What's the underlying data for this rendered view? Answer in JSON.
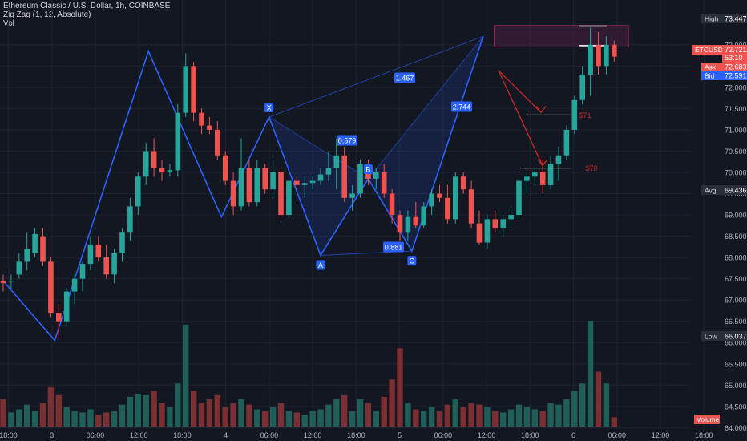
{
  "header": {
    "symbol_line": "Ethereum Classic / U.S. Dollar, 1h, COINBASE",
    "indicator_line": "Zig Zag (1, 12, Absolute)",
    "volume_line": "Vol"
  },
  "price_badges": {
    "high_label": "High",
    "high_value": "73.447",
    "symbol": "ETCUSD",
    "last_value": "72.721",
    "countdown": "53:10",
    "ask_label": "Ask",
    "ask_value": "72.683",
    "bid_label": "Bid",
    "bid_value": "72.591",
    "avg_label": "Avg",
    "avg_value": "69.436",
    "low_label": "Low",
    "low_value": "66.037",
    "volume_label": "Volume"
  },
  "pattern": {
    "points": [
      {
        "label": "X",
        "time": 18,
        "price": 71.3
      },
      {
        "label": "A",
        "time": 24,
        "price": 68.05
      },
      {
        "label": "B",
        "time": 30,
        "price": 69.85
      },
      {
        "label": "C",
        "time": 35.5,
        "price": 68.15
      }
    ],
    "ratios": [
      "1.467",
      "0.579",
      "0.881",
      "2.744"
    ]
  },
  "targets": [
    "$71",
    "$70"
  ],
  "colors": {
    "up": "#26a69a",
    "down": "#ef5350",
    "zigzag": "#2962ff",
    "badge_blue": "#2962ff",
    "target_red": "#c62828",
    "box": "#4a1f3f"
  },
  "chart_data": {
    "type": "candlestick",
    "symbol": "ETCUSD",
    "interval": "1h",
    "exchange": "COINBASE",
    "x_ticks": [
      "18:00",
      "3",
      "06:00",
      "12:00",
      "18:00",
      "4",
      "06:00",
      "12:00",
      "18:00",
      "5",
      "06:00",
      "12:00",
      "18:00",
      "6",
      "06:00",
      "12:00",
      "18:00"
    ],
    "y_ticks": [
      "64.000",
      "64.500",
      "65.000",
      "65.500",
      "66.000",
      "66.500",
      "67.000",
      "67.500",
      "68.000",
      "68.500",
      "69.000",
      "69.500",
      "70.000",
      "70.500",
      "71.000",
      "71.500",
      "72.000",
      "72.500",
      "73.000"
    ],
    "ylim": [
      63.95,
      73.75
    ],
    "zigzag": [
      {
        "time": 0.0,
        "price": 67.45
      },
      {
        "time": 6.5,
        "price": 66.05
      },
      {
        "time": 18.3,
        "price": 72.85
      },
      {
        "time": 27.5,
        "price": 68.95
      },
      {
        "time": 33.5,
        "price": 71.3
      },
      {
        "time": 40.0,
        "price": 68.05
      },
      {
        "time": 46.0,
        "price": 69.85
      },
      {
        "time": 51.5,
        "price": 68.15
      },
      {
        "time": 60.5,
        "price": 73.2
      }
    ],
    "candles": [
      {
        "o": 67.45,
        "h": 67.6,
        "l": 67.2,
        "c": 67.4,
        "v": 0.35
      },
      {
        "o": 67.45,
        "h": 67.6,
        "l": 67.25,
        "c": 67.45,
        "v": 0.18
      },
      {
        "o": 67.6,
        "h": 68.1,
        "l": 67.5,
        "c": 67.9,
        "v": 0.22
      },
      {
        "o": 67.9,
        "h": 68.6,
        "l": 67.7,
        "c": 68.2,
        "v": 0.28
      },
      {
        "o": 68.1,
        "h": 68.7,
        "l": 68.0,
        "c": 68.55,
        "v": 0.2
      },
      {
        "o": 68.5,
        "h": 68.7,
        "l": 67.8,
        "c": 67.9,
        "v": 0.3
      },
      {
        "o": 67.9,
        "h": 68.0,
        "l": 66.6,
        "c": 66.7,
        "v": 0.5
      },
      {
        "o": 66.7,
        "h": 66.9,
        "l": 66.1,
        "c": 66.5,
        "v": 0.4
      },
      {
        "o": 66.5,
        "h": 67.3,
        "l": 66.4,
        "c": 67.2,
        "v": 0.25
      },
      {
        "o": 67.2,
        "h": 67.6,
        "l": 66.9,
        "c": 67.5,
        "v": 0.2
      },
      {
        "o": 67.5,
        "h": 67.9,
        "l": 67.2,
        "c": 67.85,
        "v": 0.18
      },
      {
        "o": 67.85,
        "h": 68.5,
        "l": 67.7,
        "c": 68.3,
        "v": 0.22
      },
      {
        "o": 68.3,
        "h": 68.5,
        "l": 67.9,
        "c": 68.0,
        "v": 0.15
      },
      {
        "o": 68.0,
        "h": 68.3,
        "l": 67.5,
        "c": 67.6,
        "v": 0.18
      },
      {
        "o": 67.6,
        "h": 68.2,
        "l": 67.4,
        "c": 68.1,
        "v": 0.2
      },
      {
        "o": 68.1,
        "h": 68.7,
        "l": 67.9,
        "c": 68.6,
        "v": 0.28
      },
      {
        "o": 68.6,
        "h": 69.4,
        "l": 68.4,
        "c": 69.2,
        "v": 0.38
      },
      {
        "o": 69.2,
        "h": 70.0,
        "l": 69.0,
        "c": 69.9,
        "v": 0.42
      },
      {
        "o": 69.9,
        "h": 70.7,
        "l": 69.7,
        "c": 70.5,
        "v": 0.4
      },
      {
        "o": 70.5,
        "h": 70.8,
        "l": 69.9,
        "c": 70.1,
        "v": 0.45
      },
      {
        "o": 70.1,
        "h": 70.3,
        "l": 69.8,
        "c": 70.0,
        "v": 0.3
      },
      {
        "o": 70.0,
        "h": 70.2,
        "l": 69.9,
        "c": 70.05,
        "v": 0.25
      },
      {
        "o": 70.05,
        "h": 71.6,
        "l": 69.9,
        "c": 71.4,
        "v": 0.55
      },
      {
        "o": 71.4,
        "h": 72.8,
        "l": 71.3,
        "c": 72.5,
        "v": 1.3
      },
      {
        "o": 72.5,
        "h": 72.6,
        "l": 71.2,
        "c": 71.4,
        "v": 0.45
      },
      {
        "o": 71.4,
        "h": 71.5,
        "l": 70.9,
        "c": 71.1,
        "v": 0.3
      },
      {
        "o": 71.1,
        "h": 71.3,
        "l": 70.9,
        "c": 71.0,
        "v": 0.35
      },
      {
        "o": 71.0,
        "h": 71.2,
        "l": 70.3,
        "c": 70.4,
        "v": 0.4
      },
      {
        "o": 70.4,
        "h": 70.5,
        "l": 69.7,
        "c": 69.8,
        "v": 0.25
      },
      {
        "o": 69.8,
        "h": 70.0,
        "l": 69.0,
        "c": 69.2,
        "v": 0.3
      },
      {
        "o": 69.2,
        "h": 70.8,
        "l": 69.1,
        "c": 70.1,
        "v": 0.35
      },
      {
        "o": 70.1,
        "h": 70.3,
        "l": 69.2,
        "c": 69.3,
        "v": 0.28
      },
      {
        "o": 69.3,
        "h": 70.3,
        "l": 69.2,
        "c": 70.1,
        "v": 0.22
      },
      {
        "o": 70.1,
        "h": 70.2,
        "l": 69.5,
        "c": 69.6,
        "v": 0.2
      },
      {
        "o": 69.6,
        "h": 70.3,
        "l": 69.4,
        "c": 70.0,
        "v": 0.25
      },
      {
        "o": 70.0,
        "h": 70.1,
        "l": 68.9,
        "c": 69.0,
        "v": 0.3
      },
      {
        "o": 69.0,
        "h": 69.8,
        "l": 68.9,
        "c": 69.8,
        "v": 0.2
      },
      {
        "o": 69.8,
        "h": 69.9,
        "l": 69.6,
        "c": 69.7,
        "v": 0.18
      },
      {
        "o": 69.7,
        "h": 69.9,
        "l": 69.4,
        "c": 69.75,
        "v": 0.15
      },
      {
        "o": 69.75,
        "h": 69.9,
        "l": 69.6,
        "c": 69.8,
        "v": 0.2
      },
      {
        "o": 69.8,
        "h": 70.1,
        "l": 69.7,
        "c": 69.95,
        "v": 0.22
      },
      {
        "o": 69.95,
        "h": 70.5,
        "l": 69.8,
        "c": 70.1,
        "v": 0.28
      },
      {
        "o": 70.1,
        "h": 70.8,
        "l": 69.6,
        "c": 70.4,
        "v": 0.35
      },
      {
        "o": 70.4,
        "h": 70.6,
        "l": 69.3,
        "c": 69.4,
        "v": 0.4
      },
      {
        "o": 69.4,
        "h": 69.7,
        "l": 69.1,
        "c": 69.5,
        "v": 0.2
      },
      {
        "o": 69.5,
        "h": 70.3,
        "l": 69.4,
        "c": 70.2,
        "v": 0.35
      },
      {
        "o": 70.2,
        "h": 70.3,
        "l": 69.7,
        "c": 69.85,
        "v": 0.3
      },
      {
        "o": 69.85,
        "h": 70.1,
        "l": 69.6,
        "c": 70.0,
        "v": 0.2
      },
      {
        "o": 70.0,
        "h": 70.2,
        "l": 69.4,
        "c": 69.5,
        "v": 0.38
      },
      {
        "o": 69.5,
        "h": 69.6,
        "l": 68.8,
        "c": 69.0,
        "v": 0.6
      },
      {
        "o": 69.0,
        "h": 69.1,
        "l": 68.4,
        "c": 68.6,
        "v": 1.0
      },
      {
        "o": 68.6,
        "h": 69.1,
        "l": 68.4,
        "c": 68.95,
        "v": 0.3
      },
      {
        "o": 68.95,
        "h": 69.3,
        "l": 68.7,
        "c": 68.75,
        "v": 0.22
      },
      {
        "o": 68.75,
        "h": 69.3,
        "l": 68.7,
        "c": 69.2,
        "v": 0.2
      },
      {
        "o": 69.2,
        "h": 69.6,
        "l": 69.0,
        "c": 69.5,
        "v": 0.25
      },
      {
        "o": 69.5,
        "h": 69.7,
        "l": 69.3,
        "c": 69.4,
        "v": 0.2
      },
      {
        "o": 69.4,
        "h": 69.7,
        "l": 68.8,
        "c": 68.9,
        "v": 0.28
      },
      {
        "o": 68.9,
        "h": 70.0,
        "l": 68.8,
        "c": 69.9,
        "v": 0.35
      },
      {
        "o": 69.9,
        "h": 70.0,
        "l": 69.5,
        "c": 69.6,
        "v": 0.25
      },
      {
        "o": 69.6,
        "h": 69.8,
        "l": 68.7,
        "c": 68.8,
        "v": 0.3
      },
      {
        "o": 68.8,
        "h": 69.1,
        "l": 68.3,
        "c": 68.35,
        "v": 0.28
      },
      {
        "o": 68.35,
        "h": 69.0,
        "l": 68.2,
        "c": 68.9,
        "v": 0.25
      },
      {
        "o": 68.9,
        "h": 69.1,
        "l": 68.6,
        "c": 68.7,
        "v": 0.2
      },
      {
        "o": 68.7,
        "h": 69.0,
        "l": 68.5,
        "c": 68.9,
        "v": 0.18
      },
      {
        "o": 68.9,
        "h": 69.2,
        "l": 68.7,
        "c": 69.0,
        "v": 0.22
      },
      {
        "o": 69.0,
        "h": 69.9,
        "l": 68.9,
        "c": 69.8,
        "v": 0.28
      },
      {
        "o": 69.8,
        "h": 70.0,
        "l": 69.5,
        "c": 69.9,
        "v": 0.25
      },
      {
        "o": 69.9,
        "h": 70.1,
        "l": 69.7,
        "c": 70.0,
        "v": 0.22
      },
      {
        "o": 70.0,
        "h": 70.3,
        "l": 69.5,
        "c": 69.7,
        "v": 0.2
      },
      {
        "o": 69.7,
        "h": 70.4,
        "l": 69.6,
        "c": 70.2,
        "v": 0.3
      },
      {
        "o": 70.2,
        "h": 70.6,
        "l": 69.8,
        "c": 70.4,
        "v": 0.28
      },
      {
        "o": 70.4,
        "h": 71.1,
        "l": 70.3,
        "c": 71.0,
        "v": 0.35
      },
      {
        "o": 71.0,
        "h": 71.8,
        "l": 70.9,
        "c": 71.7,
        "v": 0.45
      },
      {
        "o": 71.7,
        "h": 72.5,
        "l": 71.6,
        "c": 72.3,
        "v": 0.55
      },
      {
        "o": 72.3,
        "h": 73.4,
        "l": 71.8,
        "c": 73.0,
        "v": 1.35
      },
      {
        "o": 73.0,
        "h": 73.3,
        "l": 72.3,
        "c": 72.5,
        "v": 0.7
      },
      {
        "o": 72.5,
        "h": 73.2,
        "l": 72.3,
        "c": 73.0,
        "v": 0.55
      },
      {
        "o": 73.0,
        "h": 73.1,
        "l": 72.6,
        "c": 72.72,
        "v": 0.12
      }
    ]
  }
}
